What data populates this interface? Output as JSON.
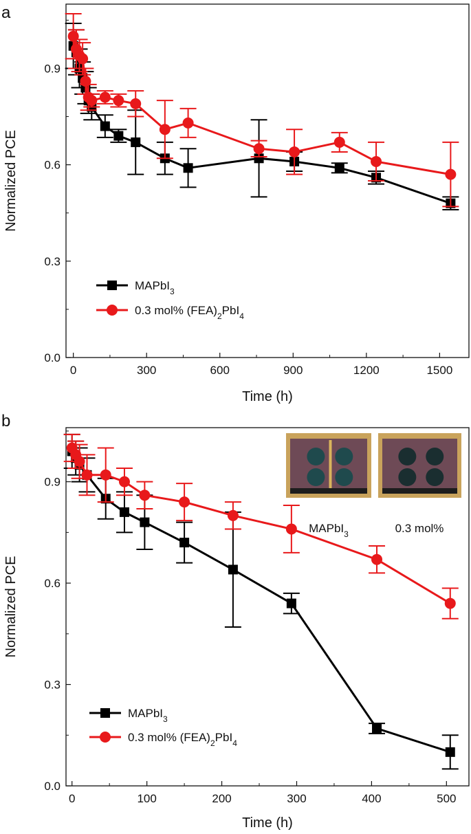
{
  "colors": {
    "mapbi": "#000000",
    "fea": "#e8191b",
    "axis": "#111111"
  },
  "icons": {
    "square_marker": "square-marker-icon",
    "circle_marker": "circle-marker-icon"
  },
  "chart_data": [
    {
      "panel_label": "a",
      "type": "line",
      "xlabel": "Time (h)",
      "ylabel": "Normalized PCE",
      "xlim": [
        -30,
        1620
      ],
      "ylim": [
        0,
        1.1
      ],
      "xticks": [
        0,
        300,
        600,
        900,
        1200,
        1500
      ],
      "xtick_labels": [
        "0",
        "300",
        "600",
        "900",
        "1200",
        "1500"
      ],
      "yticks": [
        0,
        0.3,
        0.6,
        0.9
      ],
      "ytick_labels": [
        "0.0",
        "0.3",
        "0.6",
        "0.9"
      ],
      "legend": {
        "position": "lower-left",
        "entries": [
          {
            "text": "MAPbI",
            "sub": "3",
            "rest": ""
          },
          {
            "text": "0.3 mol% (FEA)",
            "sub": "2",
            "rest": "PbI",
            "sub2": "4"
          }
        ]
      },
      "series": [
        {
          "name": "MAPbI3",
          "marker": "square",
          "color": "#000000",
          "x": [
            0,
            12,
            25,
            38,
            50,
            62,
            75,
            130,
            185,
            255,
            375,
            470,
            760,
            905,
            1090,
            1240,
            1545
          ],
          "y": [
            0.97,
            0.95,
            0.9,
            0.87,
            0.84,
            0.8,
            0.78,
            0.72,
            0.69,
            0.67,
            0.62,
            0.59,
            0.62,
            0.61,
            0.59,
            0.56,
            0.48
          ],
          "err": [
            0.07,
            0.07,
            0.06,
            0.05,
            0.05,
            0.04,
            0.04,
            0.035,
            0.02,
            0.1,
            0.05,
            0.06,
            0.12,
            0.03,
            0.015,
            0.02,
            0.02
          ]
        },
        {
          "name": "0.3 mol% (FEA)2PbI4",
          "marker": "circle",
          "color": "#e8191b",
          "x": [
            0,
            12,
            25,
            38,
            50,
            62,
            75,
            130,
            185,
            255,
            375,
            470,
            760,
            905,
            1090,
            1240,
            1545
          ],
          "y": [
            1.0,
            0.96,
            0.94,
            0.93,
            0.86,
            0.81,
            0.8,
            0.81,
            0.8,
            0.79,
            0.71,
            0.73,
            0.65,
            0.64,
            0.67,
            0.61,
            0.57
          ],
          "err": [
            0.07,
            0.06,
            0.05,
            0.05,
            0.04,
            0.04,
            0.02,
            0.02,
            0.02,
            0.04,
            0.09,
            0.045,
            0.025,
            0.07,
            0.03,
            0.06,
            0.1
          ]
        }
      ]
    },
    {
      "panel_label": "b",
      "type": "line",
      "xlabel": "Time (h)",
      "ylabel": "Normalized PCE",
      "xlim": [
        -8,
        530
      ],
      "ylim": [
        0,
        1.06
      ],
      "xticks": [
        0,
        100,
        200,
        300,
        400,
        500
      ],
      "xtick_labels": [
        "0",
        "100",
        "200",
        "300",
        "400",
        "500"
      ],
      "yticks": [
        0,
        0.3,
        0.6,
        0.9
      ],
      "ytick_labels": [
        "0.0",
        "0.3",
        "0.6",
        "0.9"
      ],
      "legend": {
        "position": "lower-left",
        "entries": [
          {
            "text": "MAPbI",
            "sub": "3",
            "rest": ""
          },
          {
            "text": "0.3 mol% (FEA)",
            "sub": "2",
            "rest": "PbI",
            "sub2": "4"
          }
        ]
      },
      "inset": {
        "photos": [
          "MAPbI3 device photo",
          "0.3 mol% device photo"
        ],
        "labels": [
          {
            "text": "MAPbI",
            "sub": "3"
          },
          {
            "text": "0.3 mol%",
            "sub": ""
          }
        ]
      },
      "series": [
        {
          "name": "MAPbI3",
          "marker": "square",
          "color": "#000000",
          "x": [
            0,
            5,
            10,
            20,
            45,
            70,
            97,
            150,
            215,
            293,
            407,
            505
          ],
          "y": [
            0.99,
            0.97,
            0.95,
            0.92,
            0.85,
            0.81,
            0.78,
            0.72,
            0.64,
            0.54,
            0.17,
            0.1
          ],
          "err": [
            0.05,
            0.05,
            0.05,
            0.05,
            0.06,
            0.06,
            0.08,
            0.06,
            0.17,
            0.03,
            0.015,
            0.05
          ]
        },
        {
          "name": "0.3 mol% (FEA)2PbI4",
          "marker": "circle",
          "color": "#e8191b",
          "x": [
            0,
            5,
            10,
            20,
            45,
            70,
            97,
            150,
            215,
            293,
            407,
            505
          ],
          "y": [
            1.0,
            0.98,
            0.96,
            0.92,
            0.92,
            0.9,
            0.86,
            0.84,
            0.8,
            0.76,
            0.67,
            0.54
          ],
          "err": [
            0.04,
            0.04,
            0.05,
            0.06,
            0.08,
            0.04,
            0.04,
            0.055,
            0.04,
            0.07,
            0.04,
            0.045
          ]
        }
      ]
    }
  ]
}
